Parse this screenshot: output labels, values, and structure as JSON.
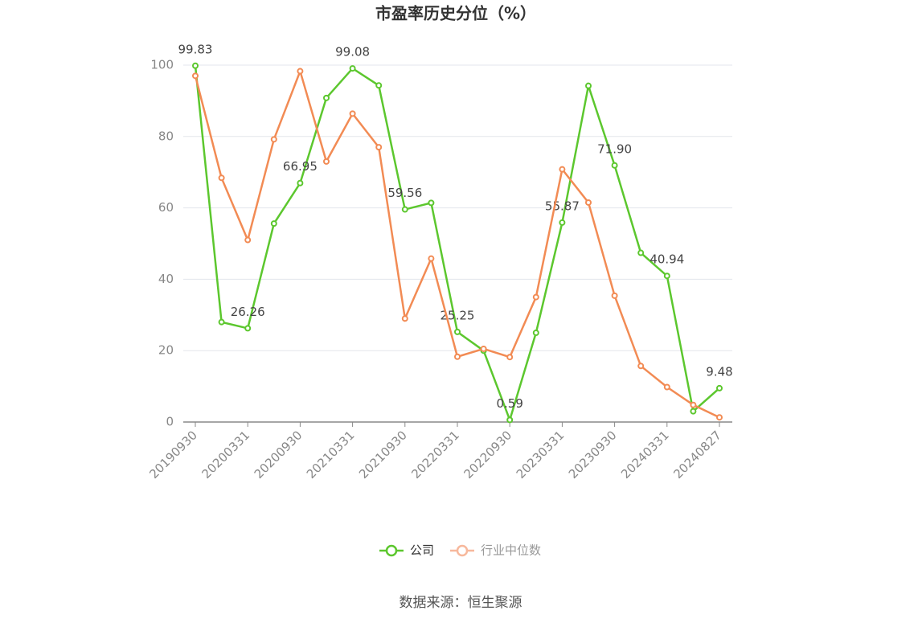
{
  "chart_data": {
    "type": "line",
    "title": "市盈率历史分位（%）",
    "categories": [
      "20190930",
      null,
      "20200331",
      null,
      "20200930",
      null,
      "20210331",
      null,
      "20210930",
      null,
      "20220331",
      null,
      "20220930",
      null,
      "20230331",
      null,
      "20230930",
      null,
      "20240331",
      null,
      "20240827"
    ],
    "series": [
      {
        "name": "公司",
        "color": "#5cc72e",
        "values": [
          99.83,
          28,
          26.26,
          55.6,
          66.95,
          90.8,
          99.08,
          94.3,
          59.56,
          61.4,
          25.25,
          20,
          0.59,
          25,
          55.87,
          94.2,
          71.9,
          47.4,
          40.94,
          3,
          9.48
        ],
        "value_labels": [
          "99.83",
          null,
          "26.26",
          null,
          "66.95",
          null,
          "99.08",
          null,
          "59.56",
          null,
          "25.25",
          null,
          "0.59",
          null,
          "55.87",
          null,
          "71.90",
          null,
          "40.94",
          null,
          "9.48"
        ]
      },
      {
        "name": "行业中位数",
        "color": "#f28b54",
        "values": [
          97,
          68.4,
          51,
          79.2,
          98.3,
          73,
          86.4,
          77,
          29,
          45.8,
          18.3,
          20.5,
          18.2,
          35,
          70.8,
          61.5,
          35.4,
          15.7,
          9.8,
          4.8,
          1.3
        ]
      }
    ],
    "ylim": [
      0,
      100
    ],
    "yticks": [
      0,
      20,
      40,
      60,
      80,
      100
    ],
    "grid": true,
    "source": "数据来源：恒生聚源"
  }
}
